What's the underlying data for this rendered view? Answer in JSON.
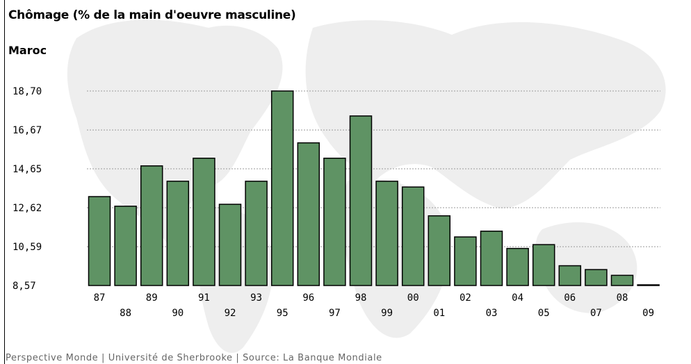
{
  "title": "Chômage (% de la main d'oeuvre masculine)",
  "subtitle": "Maroc",
  "footer": "Perspective Monde | Université de Sherbrooke | Source: La Banque Mondiale",
  "colors": {
    "bar": "#5f9364",
    "bar_stroke": "#000000",
    "grid": "#999999"
  },
  "chart_data": {
    "type": "bar",
    "title": "Chômage (% de la main d'oeuvre masculine)",
    "subtitle": "Maroc",
    "categories": [
      "87",
      "88",
      "89",
      "90",
      "91",
      "92",
      "93",
      "95",
      "96",
      "97",
      "98",
      "99",
      "00",
      "01",
      "02",
      "03",
      "04",
      "05",
      "06",
      "07",
      "08",
      "09"
    ],
    "values": [
      13.2,
      12.7,
      14.8,
      14.0,
      15.2,
      12.8,
      14.0,
      18.7,
      16.0,
      15.2,
      17.4,
      14.0,
      13.7,
      12.2,
      11.1,
      11.4,
      10.5,
      10.7,
      9.6,
      9.4,
      9.1,
      8.6
    ],
    "yticks": [
      "8,57",
      "10,59",
      "12,62",
      "14,65",
      "16,67",
      "18,70"
    ],
    "ylim": [
      8.57,
      18.7
    ],
    "xlabel": "",
    "ylabel": "",
    "grid": true
  }
}
